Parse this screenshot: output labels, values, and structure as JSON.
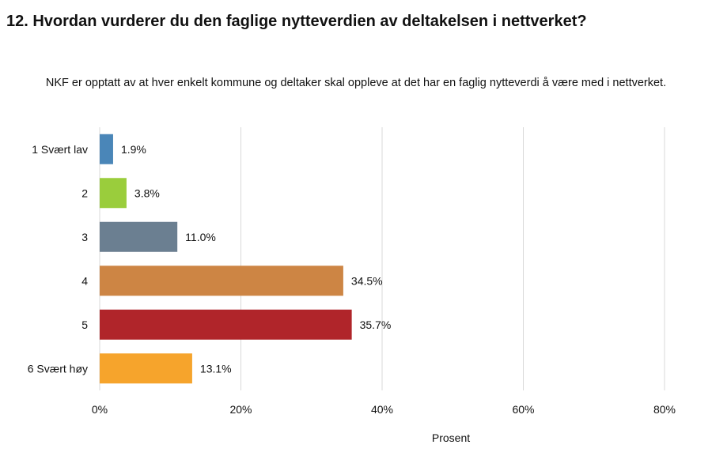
{
  "title": "12. Hvordan vurderer du den faglige nytteverdien av deltakelsen i nettverket?",
  "subtitle": "NKF er opptatt av at hver enkelt kommune og deltaker skal oppleve at det har en faglig nytteverdi å være med i nettverket.",
  "chart_data": {
    "type": "bar",
    "orientation": "horizontal",
    "categories": [
      "1 Svært lav",
      "2",
      "3",
      "4",
      "5",
      "6 Svært høy"
    ],
    "values": [
      1.9,
      3.8,
      11.0,
      34.5,
      35.7,
      13.1
    ],
    "value_labels": [
      "1.9%",
      "3.8%",
      "11.0%",
      "34.5%",
      "35.7%",
      "13.1%"
    ],
    "colors": [
      "#4a86b8",
      "#9acd3c",
      "#6b7f91",
      "#cd8544",
      "#b0252a",
      "#f6a42c"
    ],
    "xlabel": "Prosent",
    "ylabel": "",
    "xlim": [
      0,
      80
    ],
    "xticks": [
      0,
      20,
      40,
      60,
      80
    ],
    "xtick_labels": [
      "0%",
      "20%",
      "40%",
      "60%",
      "80%"
    ],
    "grid": true,
    "legend": "none"
  }
}
